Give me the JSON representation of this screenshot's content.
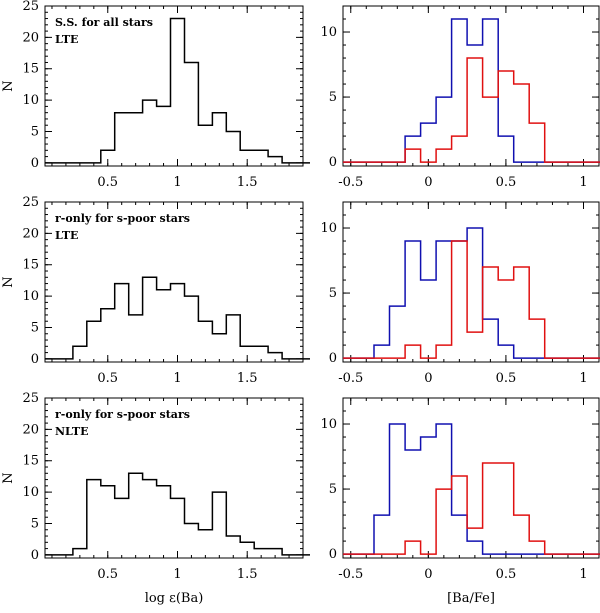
{
  "chart_data": [
    {
      "type": "histogram",
      "panel": "top-left",
      "annotation_lines": [
        "S.S. for all stars",
        "LTE"
      ],
      "ylabel": "N",
      "xlabel": "",
      "xlim": [
        0.05,
        1.9
      ],
      "ylim": [
        -0.5,
        25
      ],
      "xticks": [
        0.5,
        1,
        1.5
      ],
      "xtick_labels": [
        "0.5",
        "1",
        "1.5"
      ],
      "yticks": [
        0,
        5,
        10,
        15,
        20,
        25
      ],
      "ytick_labels": [
        "0",
        "5",
        "10",
        "15",
        "20",
        "25"
      ],
      "bin_width": 0.1,
      "series": [
        {
          "name": "all stars",
          "color": "#000000",
          "bin_left": [
            0.05,
            0.15,
            0.25,
            0.35,
            0.45,
            0.55,
            0.65,
            0.75,
            0.85,
            0.95,
            1.05,
            1.15,
            1.25,
            1.35,
            1.45,
            1.55,
            1.65,
            1.75,
            1.85
          ],
          "counts": [
            0,
            0,
            0,
            0,
            2,
            8,
            8,
            10,
            9,
            23,
            16,
            6,
            8,
            5,
            2,
            2,
            1,
            0,
            0
          ]
        }
      ]
    },
    {
      "type": "histogram",
      "panel": "top-right",
      "annotation_lines": [],
      "ylabel": "",
      "xlabel": "",
      "xlim": [
        -0.55,
        1.1
      ],
      "ylim": [
        -0.3,
        12
      ],
      "xticks": [
        -0.5,
        0,
        0.5,
        1
      ],
      "xtick_labels": [
        "-0.5",
        "0",
        "0.5",
        "1"
      ],
      "yticks": [
        0,
        5,
        10
      ],
      "ytick_labels": [
        "0",
        "5",
        "10"
      ],
      "bin_width": 0.1,
      "series": [
        {
          "name": "blue",
          "color": "#1010b0",
          "bin_left": [
            -0.55,
            -0.45,
            -0.35,
            -0.25,
            -0.15,
            -0.05,
            0.05,
            0.15,
            0.25,
            0.35,
            0.45,
            0.55,
            0.65,
            0.75,
            0.85,
            0.95,
            1.05
          ],
          "counts": [
            0,
            0,
            0,
            0,
            2,
            3,
            5,
            11,
            9,
            11,
            2,
            0,
            0,
            0,
            0,
            0,
            0
          ]
        },
        {
          "name": "red",
          "color": "#e01010",
          "bin_left": [
            -0.55,
            -0.45,
            -0.35,
            -0.25,
            -0.15,
            -0.05,
            0.05,
            0.15,
            0.25,
            0.35,
            0.45,
            0.55,
            0.65,
            0.75,
            0.85,
            0.95,
            1.05
          ],
          "counts": [
            0,
            0,
            0,
            0,
            1,
            0,
            1,
            2,
            8,
            5,
            7,
            6,
            3,
            0,
            0,
            0,
            0
          ]
        }
      ]
    },
    {
      "type": "histogram",
      "panel": "middle-left",
      "annotation_lines": [
        "r-only for s-poor stars",
        "LTE"
      ],
      "ylabel": "N",
      "xlabel": "",
      "xlim": [
        0.05,
        1.9
      ],
      "ylim": [
        -0.5,
        25
      ],
      "xticks": [
        0.5,
        1,
        1.5
      ],
      "xtick_labels": [
        "0.5",
        "1",
        "1.5"
      ],
      "yticks": [
        0,
        5,
        10,
        15,
        20,
        25
      ],
      "ytick_labels": [
        "0",
        "5",
        "10",
        "15",
        "20",
        "25"
      ],
      "bin_width": 0.1,
      "series": [
        {
          "name": "all stars",
          "color": "#000000",
          "bin_left": [
            0.05,
            0.15,
            0.25,
            0.35,
            0.45,
            0.55,
            0.65,
            0.75,
            0.85,
            0.95,
            1.05,
            1.15,
            1.25,
            1.35,
            1.45,
            1.55,
            1.65,
            1.75,
            1.85
          ],
          "counts": [
            0,
            0,
            2,
            6,
            8,
            12,
            7,
            13,
            11,
            12,
            10,
            6,
            4,
            7,
            2,
            2,
            1,
            0,
            0
          ]
        }
      ]
    },
    {
      "type": "histogram",
      "panel": "middle-right",
      "annotation_lines": [],
      "ylabel": "",
      "xlabel": "",
      "xlim": [
        -0.55,
        1.1
      ],
      "ylim": [
        -0.3,
        12
      ],
      "xticks": [
        -0.5,
        0,
        0.5,
        1
      ],
      "xtick_labels": [
        "-0.5",
        "0",
        "0.5",
        "1"
      ],
      "yticks": [
        0,
        5,
        10
      ],
      "ytick_labels": [
        "0",
        "5",
        "10"
      ],
      "bin_width": 0.1,
      "series": [
        {
          "name": "blue",
          "color": "#1010b0",
          "bin_left": [
            -0.55,
            -0.45,
            -0.35,
            -0.25,
            -0.15,
            -0.05,
            0.05,
            0.15,
            0.25,
            0.35,
            0.45,
            0.55,
            0.65,
            0.75,
            0.85,
            0.95,
            1.05
          ],
          "counts": [
            0,
            0,
            1,
            4,
            9,
            6,
            9,
            9,
            10,
            3,
            1,
            0,
            0,
            0,
            0,
            0,
            0
          ]
        },
        {
          "name": "red",
          "color": "#e01010",
          "bin_left": [
            -0.55,
            -0.45,
            -0.35,
            -0.25,
            -0.15,
            -0.05,
            0.05,
            0.15,
            0.25,
            0.35,
            0.45,
            0.55,
            0.65,
            0.75,
            0.85,
            0.95,
            1.05
          ],
          "counts": [
            0,
            0,
            0,
            0,
            1,
            0,
            1,
            9,
            2,
            7,
            6,
            7,
            3,
            0,
            0,
            0,
            0
          ]
        }
      ]
    },
    {
      "type": "histogram",
      "panel": "bottom-left",
      "annotation_lines": [
        "r-only for s-poor stars",
        "NLTE"
      ],
      "ylabel": "N",
      "xlabel": "log ε(Ba)",
      "xlim": [
        0.05,
        1.9
      ],
      "ylim": [
        -0.5,
        25
      ],
      "xticks": [
        0.5,
        1,
        1.5
      ],
      "xtick_labels": [
        "0.5",
        "1",
        "1.5"
      ],
      "yticks": [
        0,
        5,
        10,
        15,
        20,
        25
      ],
      "ytick_labels": [
        "0",
        "5",
        "10",
        "15",
        "20",
        "25"
      ],
      "bin_width": 0.1,
      "series": [
        {
          "name": "all stars",
          "color": "#000000",
          "bin_left": [
            0.05,
            0.15,
            0.25,
            0.35,
            0.45,
            0.55,
            0.65,
            0.75,
            0.85,
            0.95,
            1.05,
            1.15,
            1.25,
            1.35,
            1.45,
            1.55,
            1.65,
            1.75,
            1.85
          ],
          "counts": [
            0,
            0,
            1,
            12,
            11,
            9,
            13,
            12,
            11,
            9,
            5,
            4,
            10,
            3,
            2,
            1,
            1,
            0,
            0
          ]
        }
      ]
    },
    {
      "type": "histogram",
      "panel": "bottom-right",
      "annotation_lines": [],
      "ylabel": "",
      "xlabel": "[Ba/Fe]",
      "xlim": [
        -0.55,
        1.1
      ],
      "ylim": [
        -0.3,
        12
      ],
      "xticks": [
        -0.5,
        0,
        0.5,
        1
      ],
      "xtick_labels": [
        "-0.5",
        "0",
        "0.5",
        "1"
      ],
      "yticks": [
        0,
        5,
        10
      ],
      "ytick_labels": [
        "0",
        "5",
        "10"
      ],
      "bin_width": 0.1,
      "series": [
        {
          "name": "blue",
          "color": "#1010b0",
          "bin_left": [
            -0.55,
            -0.45,
            -0.35,
            -0.25,
            -0.15,
            -0.05,
            0.05,
            0.15,
            0.25,
            0.35,
            0.45,
            0.55,
            0.65,
            0.75,
            0.85,
            0.95,
            1.05
          ],
          "counts": [
            0,
            0,
            3,
            10,
            8,
            9,
            10,
            3,
            1,
            0,
            0,
            0,
            0,
            0,
            0,
            0,
            0
          ]
        },
        {
          "name": "red",
          "color": "#e01010",
          "bin_left": [
            -0.55,
            -0.45,
            -0.35,
            -0.25,
            -0.15,
            -0.05,
            0.05,
            0.15,
            0.25,
            0.35,
            0.45,
            0.55,
            0.65,
            0.75,
            0.85,
            0.95,
            1.05
          ],
          "counts": [
            0,
            0,
            0,
            0,
            1,
            0,
            5,
            6,
            2,
            7,
            7,
            3,
            1,
            0,
            0,
            0,
            0
          ]
        }
      ]
    }
  ]
}
